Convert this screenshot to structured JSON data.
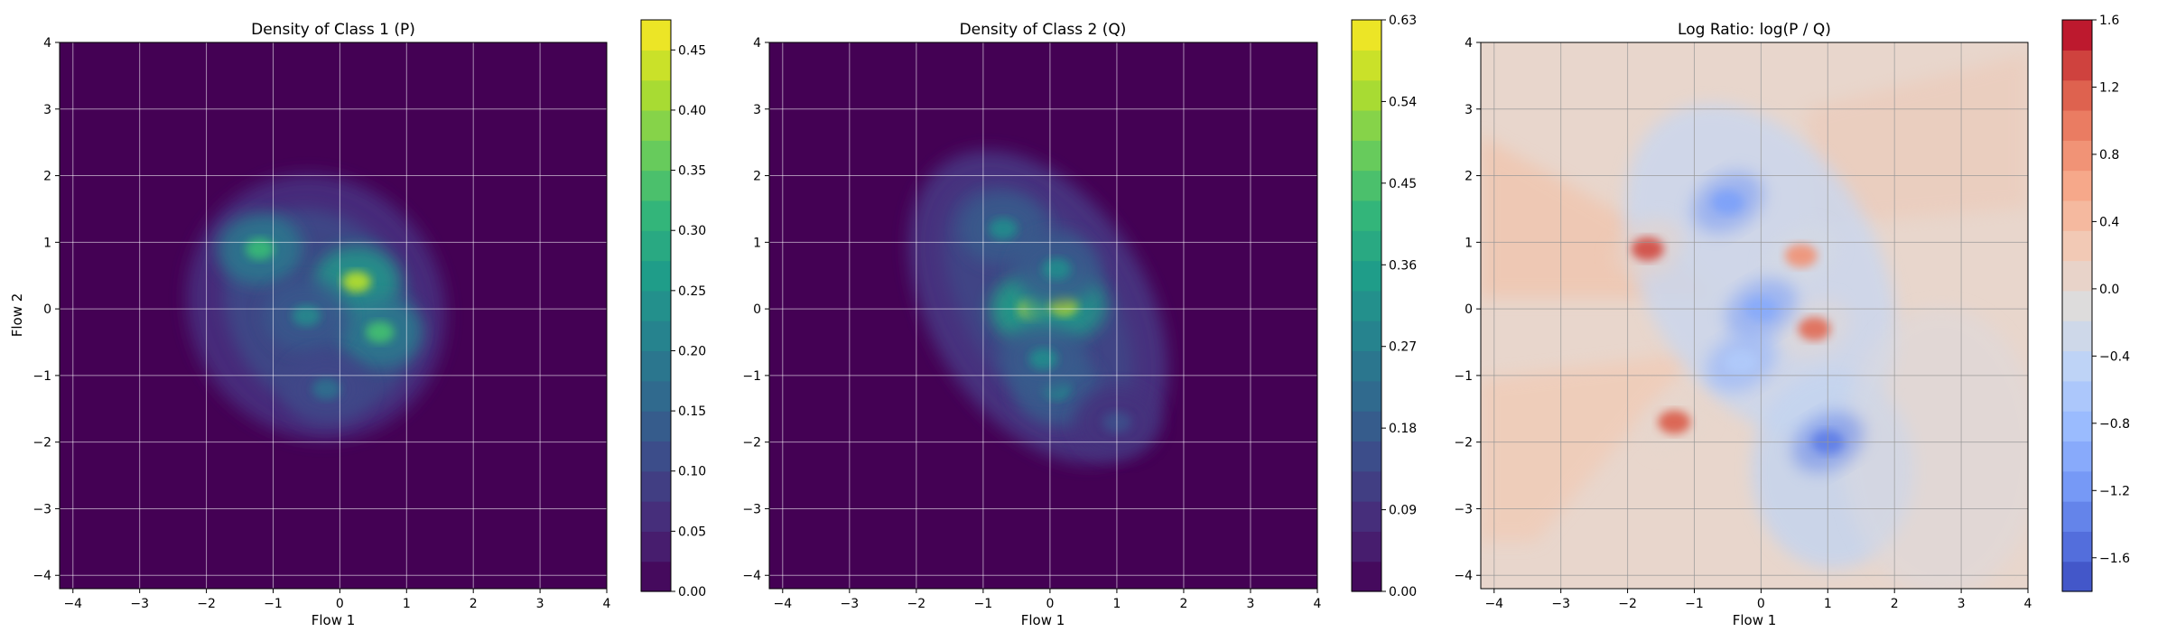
{
  "chart_data": [
    {
      "type": "heatmap",
      "title": "Density of Class 1 (P)",
      "xlabel": "Flow 1",
      "ylabel": "Flow 2",
      "xlim": [
        -4.2,
        4.0
      ],
      "ylim": [
        -4.2,
        4.0
      ],
      "x_ticks": [
        "−4",
        "−3",
        "−2",
        "−1",
        "0",
        "1",
        "2",
        "3",
        "4"
      ],
      "y_ticks": [
        "−4",
        "−3",
        "−2",
        "−1",
        "0",
        "1",
        "2",
        "3",
        "4"
      ],
      "grid": true,
      "colormap": "viridis",
      "colorbar": {
        "min": 0.0,
        "max": 0.475,
        "ticks": [
          "0.00",
          "0.05",
          "0.10",
          "0.15",
          "0.20",
          "0.25",
          "0.30",
          "0.35",
          "0.40",
          "0.45"
        ]
      },
      "peaks": [
        {
          "x": -1.2,
          "y": 0.9,
          "value": 0.32
        },
        {
          "x": 0.25,
          "y": 0.4,
          "value": 0.42
        },
        {
          "x": 0.6,
          "y": -0.35,
          "value": 0.33
        },
        {
          "x": -0.5,
          "y": -0.1,
          "value": 0.22
        },
        {
          "x": -0.2,
          "y": -1.2,
          "value": 0.17
        }
      ]
    },
    {
      "type": "heatmap",
      "title": "Density of Class 2 (Q)",
      "xlabel": "Flow 1",
      "ylabel": "",
      "xlim": [
        -4.2,
        4.0
      ],
      "ylim": [
        -4.2,
        4.0
      ],
      "x_ticks": [
        "−4",
        "−3",
        "−2",
        "−1",
        "0",
        "1",
        "2",
        "3",
        "4"
      ],
      "y_ticks": [
        "−4",
        "−3",
        "−2",
        "−1",
        "0",
        "1",
        "2",
        "3",
        "4"
      ],
      "grid": true,
      "colormap": "viridis",
      "colorbar": {
        "min": 0.0,
        "max": 0.63,
        "ticks": [
          "0.00",
          "0.09",
          "0.18",
          "0.27",
          "0.36",
          "0.45",
          "0.54",
          "0.63"
        ]
      },
      "peaks": [
        {
          "x": -0.25,
          "y": 0.0,
          "value": 0.6
        },
        {
          "x": 0.2,
          "y": 0.05,
          "value": 0.55
        },
        {
          "x": -0.7,
          "y": 1.2,
          "value": 0.3
        },
        {
          "x": 0.1,
          "y": 0.6,
          "value": 0.3
        },
        {
          "x": 0.1,
          "y": -1.2,
          "value": 0.3
        },
        {
          "x": -0.1,
          "y": -0.75,
          "value": 0.3
        },
        {
          "x": 1.0,
          "y": -1.7,
          "value": 0.15
        }
      ]
    },
    {
      "type": "heatmap",
      "title": "Log Ratio: log(P / Q)",
      "xlabel": "Flow 1",
      "ylabel": "",
      "xlim": [
        -4.2,
        4.0
      ],
      "ylim": [
        -4.2,
        4.0
      ],
      "x_ticks": [
        "−4",
        "−3",
        "−2",
        "−1",
        "0",
        "1",
        "2",
        "3",
        "4"
      ],
      "y_ticks": [
        "−4",
        "−3",
        "−2",
        "−1",
        "0",
        "1",
        "2",
        "3",
        "4"
      ],
      "grid": true,
      "colormap": "coolwarm",
      "colorbar": {
        "min": -1.8,
        "max": 1.6,
        "ticks": [
          "−1.6",
          "−1.2",
          "−0.8",
          "−0.4",
          "0.0",
          "0.4",
          "0.8",
          "1.2",
          "1.6"
        ]
      },
      "features": [
        {
          "x": -1.7,
          "y": 0.9,
          "value": 1.3
        },
        {
          "x": -1.3,
          "y": -1.7,
          "value": 1.2
        },
        {
          "x": 0.8,
          "y": -0.3,
          "value": 1.1
        },
        {
          "x": 0.6,
          "y": 0.8,
          "value": 0.8
        },
        {
          "x": -0.5,
          "y": 1.6,
          "value": -1.1
        },
        {
          "x": 1.0,
          "y": -2.0,
          "value": -1.4
        },
        {
          "x": 0.0,
          "y": 0.0,
          "value": -1.0
        },
        {
          "x": -0.3,
          "y": -0.8,
          "value": -0.6
        }
      ]
    }
  ]
}
